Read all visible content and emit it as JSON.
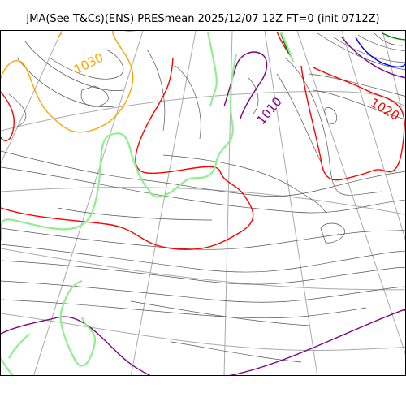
{
  "title": "JMA(See T&Cs)(ENS) PRESmean 2025/12/07 12Z FT=0 (init 0712Z)",
  "contour_labels": [
    {
      "id": "label-1030",
      "text": "1030",
      "color": "#ffa500"
    },
    {
      "id": "label-1010",
      "text": "1010",
      "color": "#800080"
    },
    {
      "id": "label-1020",
      "text": "1020",
      "color": "#ff0000"
    }
  ],
  "colors": {
    "coastline": "#90ee90",
    "graticule": "#aaaaaa",
    "minor_isobar": "#555555",
    "isobar_1020": "#ff0000",
    "isobar_1010": "#800080",
    "isobar_1030": "#ffa500",
    "isobar_1000": "#008000",
    "isobar_990": "#0000ff"
  }
}
